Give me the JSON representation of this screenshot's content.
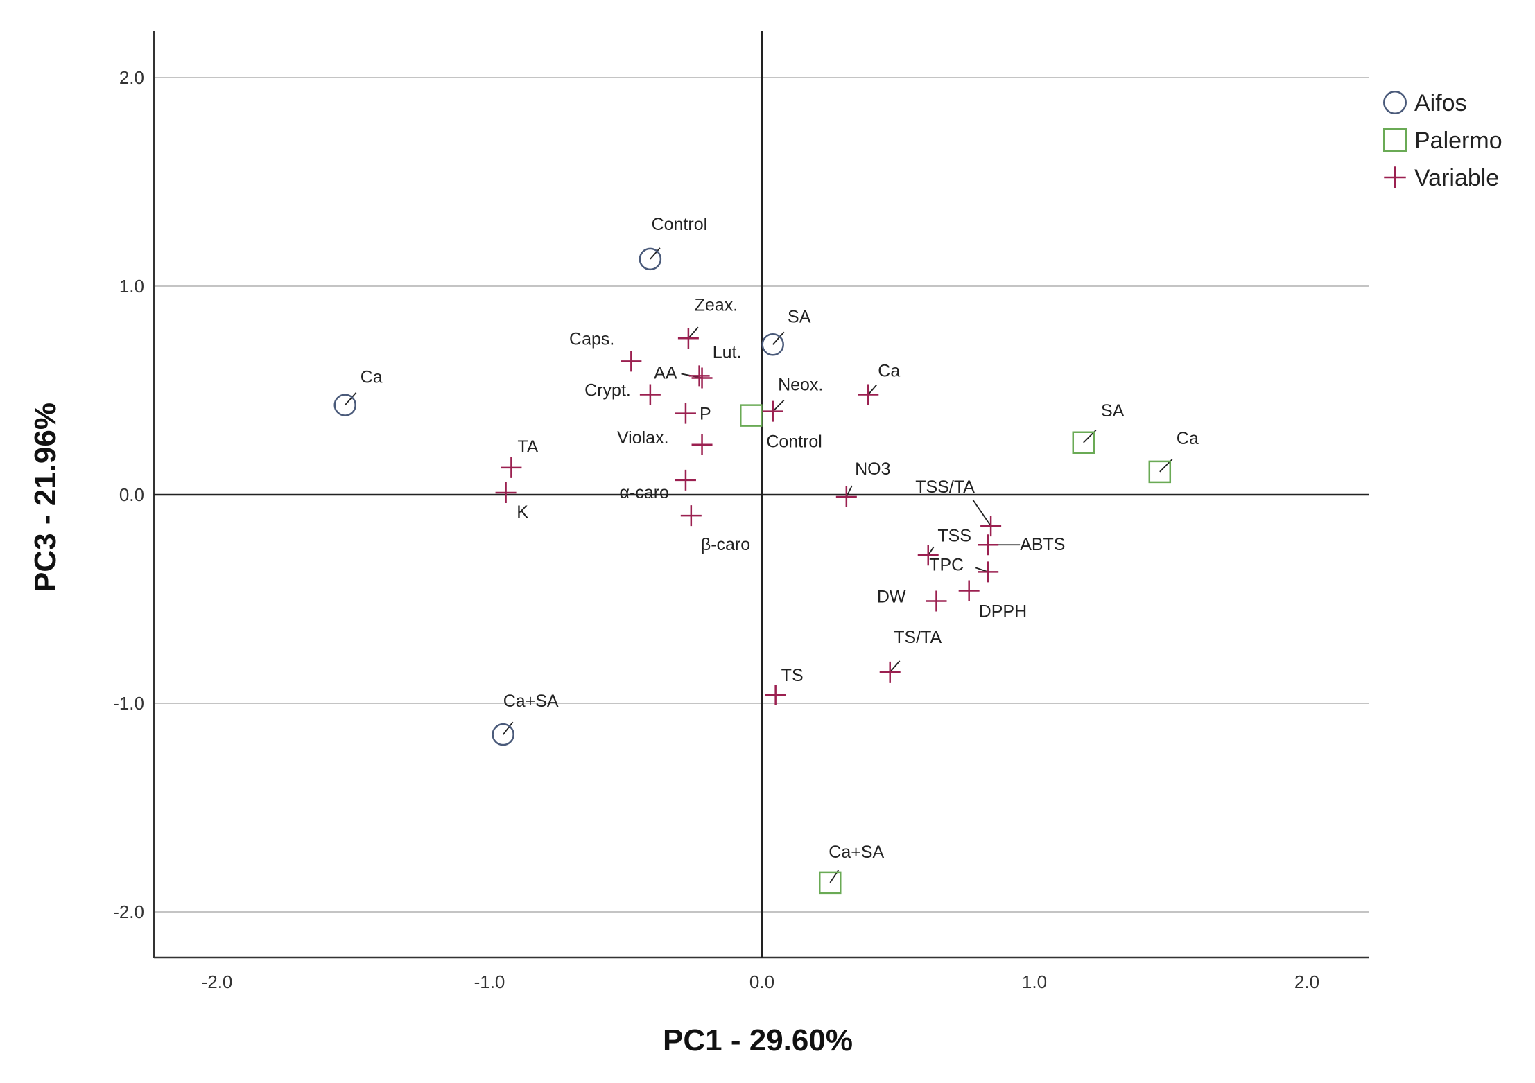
{
  "chart_data": {
    "type": "scatter",
    "xlabel": "PC1 - 29.60%",
    "ylabel": "PC3 - 21.96%",
    "xlim": [
      -2.2,
      2.2
    ],
    "ylim": [
      -2.2,
      2.2
    ],
    "xticks": [
      -2.0,
      -1.0,
      0.0,
      1.0,
      2.0
    ],
    "yticks": [
      -2.0,
      -1.0,
      0.0,
      1.0,
      2.0
    ],
    "xtick_labels": [
      "-2.0",
      "-1.0",
      "0.0",
      "1.0",
      "2.0"
    ],
    "ytick_labels": [
      "-2.0",
      "-1.0",
      "0.0",
      "1.0",
      "2.0"
    ],
    "grid": "horizontal",
    "legend_position": "top-right",
    "series": [
      {
        "name": "Aifos",
        "marker": "circle",
        "color": "#4a5a7a",
        "points": [
          {
            "label": "Control",
            "x": -0.41,
            "y": 1.13
          },
          {
            "label": "SA",
            "x": 0.04,
            "y": 0.72
          },
          {
            "label": "Ca",
            "x": -1.53,
            "y": 0.43
          },
          {
            "label": "Ca+SA",
            "x": -0.95,
            "y": -1.15
          }
        ]
      },
      {
        "name": "Palermo",
        "marker": "square",
        "color": "#6aaa55",
        "points": [
          {
            "label": "Control",
            "x": -0.04,
            "y": 0.38
          },
          {
            "label": "SA",
            "x": 1.18,
            "y": 0.25
          },
          {
            "label": "Ca",
            "x": 1.46,
            "y": 0.11
          },
          {
            "label": "Ca+SA",
            "x": 0.25,
            "y": -1.86
          }
        ]
      },
      {
        "name": "Variable",
        "marker": "plus",
        "color": "#9b2050",
        "points": [
          {
            "label": "Zeax.",
            "x": -0.27,
            "y": 0.75
          },
          {
            "label": "Caps.",
            "x": -0.48,
            "y": 0.64
          },
          {
            "label": "AA",
            "x": -0.22,
            "y": 0.56
          },
          {
            "label": "Lut.",
            "x": -0.23,
            "y": 0.57
          },
          {
            "label": "Crypt.",
            "x": -0.41,
            "y": 0.48
          },
          {
            "label": "Ca",
            "x": 0.39,
            "y": 0.48
          },
          {
            "label": "Neox.",
            "x": 0.04,
            "y": 0.4
          },
          {
            "label": "P",
            "x": -0.28,
            "y": 0.39
          },
          {
            "label": "Violax.",
            "x": -0.22,
            "y": 0.24
          },
          {
            "label": "TA",
            "x": -0.92,
            "y": 0.13
          },
          {
            "label": "α-caro",
            "x": -0.28,
            "y": 0.07
          },
          {
            "label": "K",
            "x": -0.94,
            "y": 0.01
          },
          {
            "label": "NO3",
            "x": 0.31,
            "y": -0.01
          },
          {
            "label": "β-caro",
            "x": -0.26,
            "y": -0.1
          },
          {
            "label": "TSS/TA",
            "x": 0.84,
            "y": -0.15
          },
          {
            "label": "ABTS",
            "x": 0.83,
            "y": -0.24
          },
          {
            "label": "TSS",
            "x": 0.61,
            "y": -0.29
          },
          {
            "label": "TPC",
            "x": 0.83,
            "y": -0.37
          },
          {
            "label": "DPPH",
            "x": 0.76,
            "y": -0.46
          },
          {
            "label": "DW",
            "x": 0.64,
            "y": -0.51
          },
          {
            "label": "TS/TA",
            "x": 0.47,
            "y": -0.85
          },
          {
            "label": "TS",
            "x": 0.05,
            "y": -0.96
          }
        ]
      }
    ]
  }
}
